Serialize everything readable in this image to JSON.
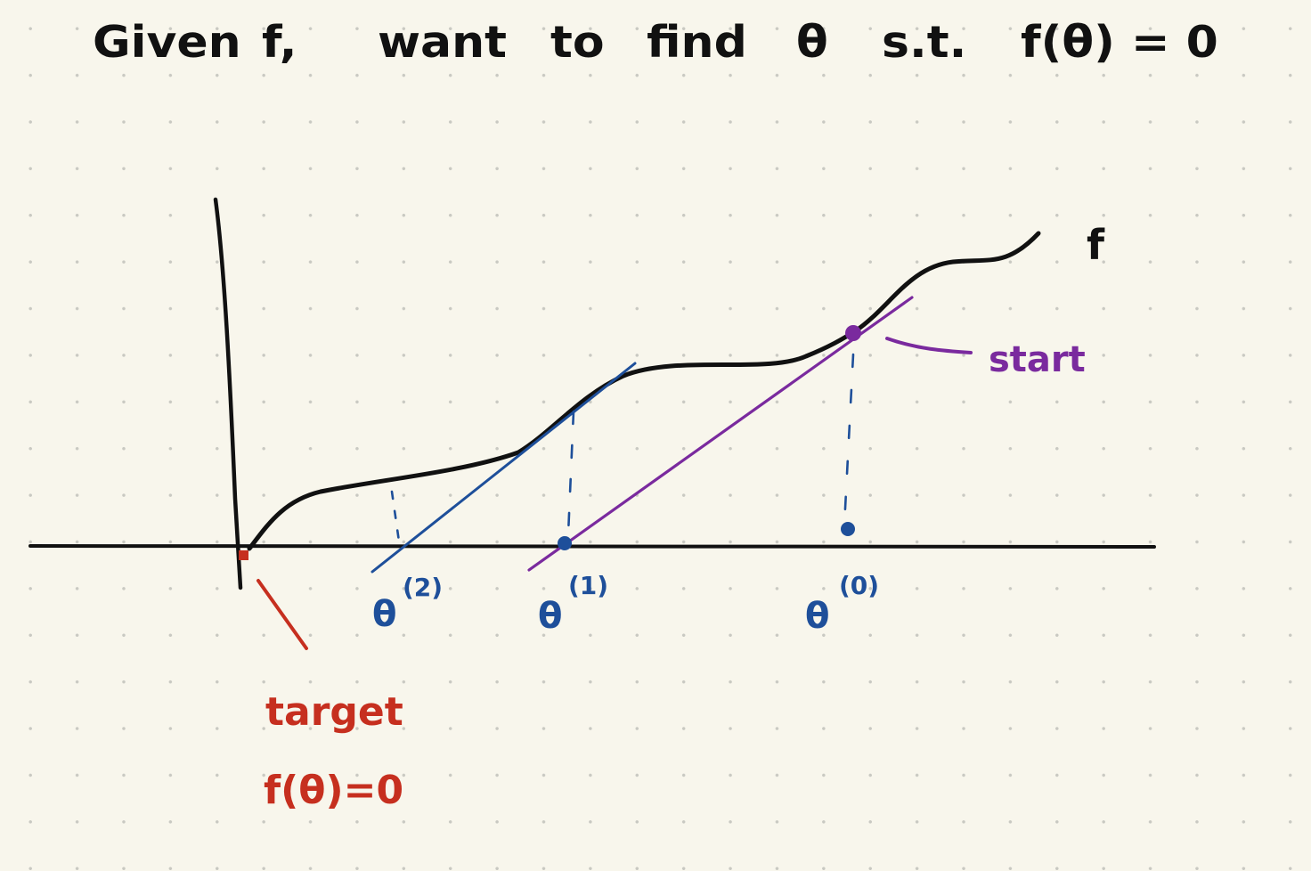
{
  "title": {
    "words": [
      "Given",
      "f,",
      "want",
      "to",
      "find",
      "θ",
      "s.t.",
      "f(θ) = 0"
    ]
  },
  "curve": {
    "label": "f"
  },
  "start": {
    "label": "start"
  },
  "target": {
    "line1": "target",
    "line2": "f(θ)=0"
  },
  "iterates": [
    {
      "symbol": "θ",
      "superscript": "(2)"
    },
    {
      "symbol": "θ",
      "superscript": "(1)"
    },
    {
      "symbol": "θ",
      "superscript": "(0)"
    }
  ],
  "colors": {
    "ink": "#111111",
    "purple": "#7a2a9e",
    "blue": "#1e4f9a",
    "red": "#c62f1f",
    "paper": "#f8f6ec"
  }
}
